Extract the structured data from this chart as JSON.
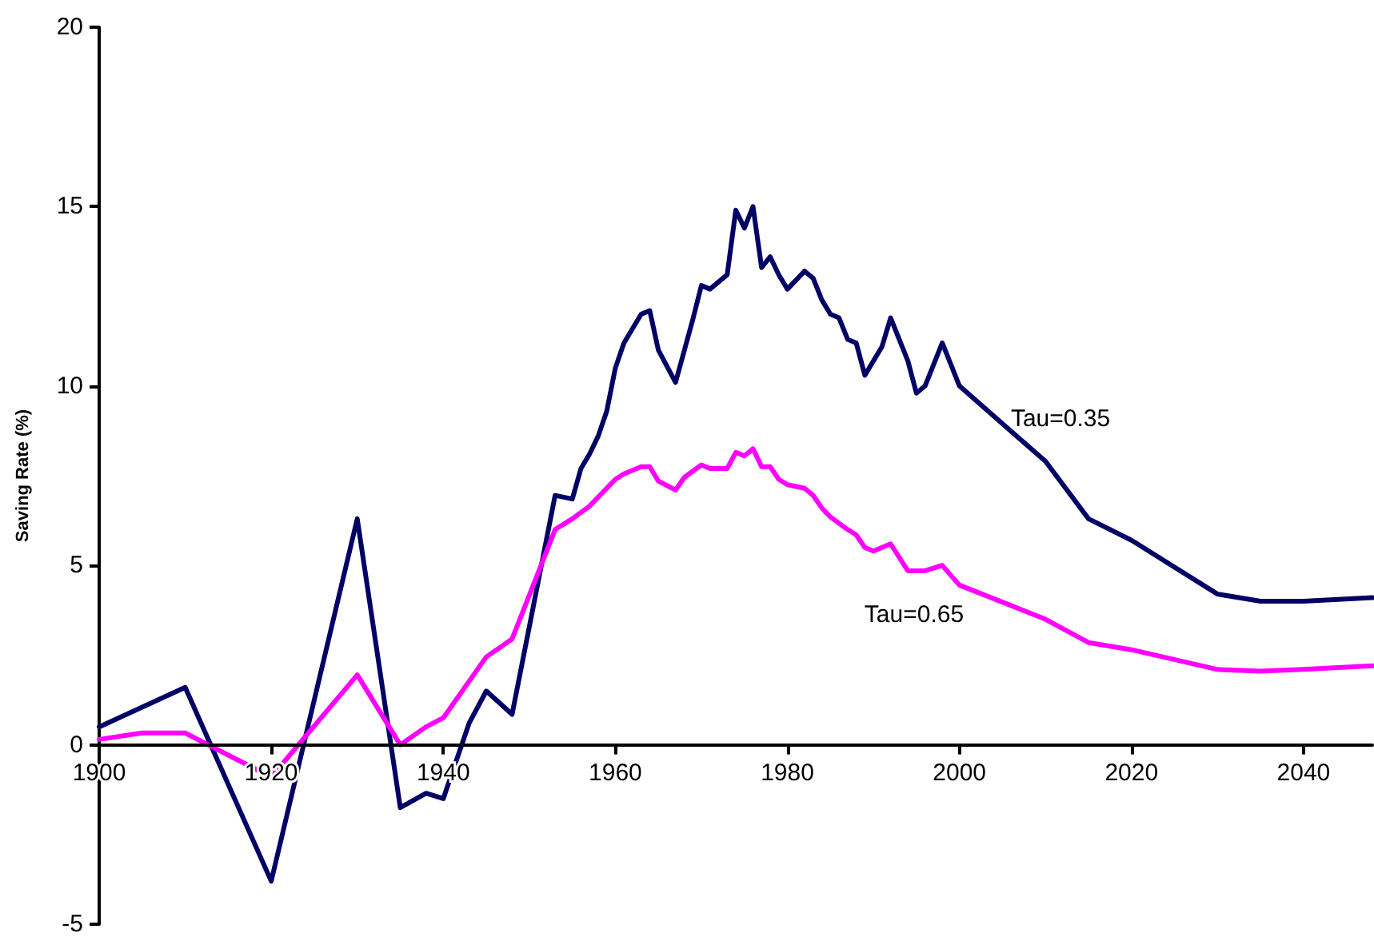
{
  "chart_data": {
    "type": "line",
    "ylabel": "Saving Rate (%)",
    "xlim": [
      1900,
      2048
    ],
    "xticks": [
      1900,
      1920,
      1940,
      1960,
      1980,
      2000,
      2020,
      2040
    ],
    "ylim": [
      -5,
      20
    ],
    "yticks": [
      -5,
      0,
      5,
      10,
      15,
      20
    ],
    "legend": false,
    "marker": "none",
    "line_style": "solid",
    "series": [
      {
        "name": "Tau=0.35",
        "color": "#000066",
        "x": [
          1900,
          1910,
          1920,
          1930,
          1935,
          1938,
          1940,
          1943,
          1945,
          1948,
          1953,
          1955,
          1956,
          1957,
          1958,
          1959,
          1960,
          1961,
          1963,
          1964,
          1965,
          1967,
          1969,
          1970,
          1971,
          1973,
          1974,
          1975,
          1976,
          1977,
          1978,
          1979,
          1980,
          1982,
          1983,
          1984,
          1985,
          1986,
          1987,
          1988,
          1989,
          1991,
          1992,
          1994,
          1995,
          1996,
          1998,
          2000,
          2010,
          2015,
          2020,
          2030,
          2035,
          2040,
          2048
        ],
        "values": [
          0.5,
          1.6,
          -3.8,
          6.3,
          -1.75,
          -1.35,
          -1.5,
          0.6,
          1.5,
          0.85,
          6.95,
          6.85,
          7.7,
          8.1,
          8.6,
          9.3,
          10.5,
          11.2,
          12.0,
          12.1,
          11.0,
          10.1,
          11.85,
          12.8,
          12.7,
          13.1,
          14.9,
          14.4,
          15.0,
          13.3,
          13.6,
          13.1,
          12.7,
          13.2,
          13.0,
          12.4,
          12.0,
          11.9,
          11.3,
          11.2,
          10.3,
          11.1,
          11.9,
          10.7,
          9.8,
          10.0,
          11.2,
          10.0,
          7.9,
          6.3,
          5.7,
          4.2,
          4.0,
          4.0,
          4.1
        ]
      },
      {
        "name": "Tau=0.65",
        "color": "#ff00ff",
        "x": [
          1900,
          1905,
          1910,
          1920,
          1930,
          1935,
          1938,
          1940,
          1945,
          1948,
          1953,
          1955,
          1957,
          1958,
          1960,
          1961,
          1963,
          1964,
          1965,
          1967,
          1968,
          1970,
          1971,
          1973,
          1974,
          1975,
          1976,
          1977,
          1978,
          1979,
          1980,
          1982,
          1983,
          1984,
          1985,
          1987,
          1988,
          1989,
          1990,
          1992,
          1994,
          1996,
          1998,
          2000,
          2010,
          2015,
          2020,
          2030,
          2035,
          2040,
          2048
        ],
        "values": [
          0.15,
          0.33,
          0.33,
          -0.9,
          1.95,
          0.0,
          0.5,
          0.75,
          2.45,
          2.95,
          6.0,
          6.3,
          6.65,
          6.9,
          7.4,
          7.55,
          7.75,
          7.75,
          7.35,
          7.1,
          7.45,
          7.8,
          7.7,
          7.7,
          8.15,
          8.05,
          8.25,
          7.75,
          7.75,
          7.4,
          7.25,
          7.15,
          6.95,
          6.6,
          6.35,
          6.0,
          5.85,
          5.5,
          5.4,
          5.6,
          4.85,
          4.85,
          5.0,
          4.45,
          3.5,
          2.85,
          2.65,
          2.1,
          2.05,
          2.1,
          2.2
        ]
      }
    ]
  }
}
